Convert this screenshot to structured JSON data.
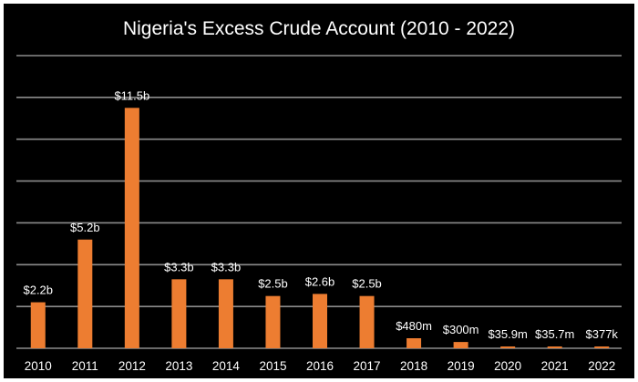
{
  "chart_data": {
    "type": "bar",
    "title": "Nigeria's Excess Crude Account (2010 - 2022)",
    "xlabel": "",
    "ylabel": "",
    "units": "USD billions",
    "ylim": [
      0,
      14
    ],
    "ygrid_step": 2,
    "grid": true,
    "legend": "none",
    "bar_color": "#ED7D31",
    "background_color": "#000000",
    "categories": [
      "2010",
      "2011",
      "2012",
      "2013",
      "2014",
      "2015",
      "2016",
      "2017",
      "2018",
      "2019",
      "2020",
      "2021",
      "2022"
    ],
    "values": [
      2.2,
      5.2,
      11.5,
      3.3,
      3.3,
      2.5,
      2.6,
      2.5,
      0.48,
      0.3,
      0.0359,
      0.0357,
      0.000377
    ],
    "data_labels": [
      "$2.2b",
      "$5.2b",
      "$11.5b",
      "$3.3b",
      "$3.3b",
      "$2.5b",
      "$2.6b",
      "$2.5b",
      "$480m",
      "$300m",
      "$35.9m",
      "$35.7m",
      "$377k"
    ]
  }
}
